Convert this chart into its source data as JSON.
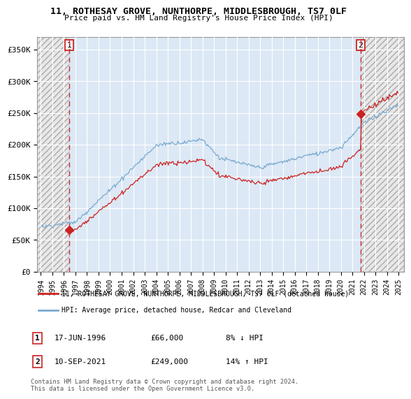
{
  "title_line1": "11, ROTHESAY GROVE, NUNTHORPE, MIDDLESBROUGH, TS7 0LF",
  "title_line2": "Price paid vs. HM Land Registry's House Price Index (HPI)",
  "ylabel_ticks": [
    "£0",
    "£50K",
    "£100K",
    "£150K",
    "£200K",
    "£250K",
    "£300K",
    "£350K"
  ],
  "ytick_values": [
    0,
    50000,
    100000,
    150000,
    200000,
    250000,
    300000,
    350000
  ],
  "ylim": [
    0,
    370000
  ],
  "xlim_start": 1993.7,
  "xlim_end": 2025.5,
  "sale1_year": 1996,
  "sale1_month": 6,
  "sale1_price": 66000,
  "sale2_year": 2021,
  "sale2_month": 9,
  "sale2_price": 249000,
  "legend_line1": "11, ROTHESAY GROVE, NUNTHORPE, MIDDLESBROUGH, TS7 0LF (detached house)",
  "legend_line2": "HPI: Average price, detached house, Redcar and Cleveland",
  "footnote": "Contains HM Land Registry data © Crown copyright and database right 2024.\nThis data is licensed under the Open Government Licence v3.0.",
  "hpi_color": "#7aaad0",
  "sale_color": "#cc2222",
  "background_color": "#dce8f5",
  "hatch_bg_color": "#e8e8e8",
  "grid_color": "#ffffff"
}
